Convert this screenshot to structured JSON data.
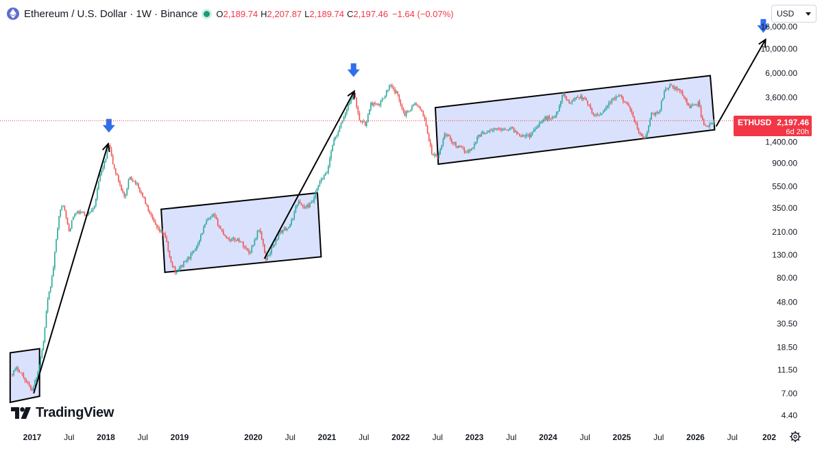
{
  "header": {
    "symbol_title": "Ethereum / U.S. Dollar · 1W · Binance",
    "open_label": "O",
    "open_value": "2,189.74",
    "high_label": "H",
    "high_value": "2,207.87",
    "low_label": "L",
    "low_value": "2,189.74",
    "close_label": "C",
    "close_value": "2,197.46",
    "change": "−1.64 (−0.07%)"
  },
  "currency_selector": {
    "value": "USD"
  },
  "price_tag": {
    "symbol": "ETHUSD",
    "price": "2,197.46",
    "countdown": "6d 20h"
  },
  "brand": {
    "name": "TradingView"
  },
  "colors": {
    "up": "#26a69a",
    "down": "#ef5350",
    "channel_fill": "#d3dcfb",
    "arrow_marker": "#2f6fea",
    "price_tag": "#f23645",
    "price_line": "#f23645",
    "trend_line": "#000000"
  },
  "chart_data": {
    "type": "candlestick",
    "scale": "log",
    "ylim": [
      3.4,
      20000
    ],
    "y_ticks": [
      "16,000.00",
      "10,000.00",
      "6,000.00",
      "3,600.00",
      "1,400.00",
      "900.00",
      "550.00",
      "350.00",
      "210.00",
      "130.00",
      "80.00",
      "48.00",
      "30.50",
      "18.50",
      "11.50",
      "7.00",
      "4.40"
    ],
    "y_tick_values": [
      16000,
      10000,
      6000,
      3600,
      1400,
      900,
      550,
      350,
      210,
      130,
      80,
      48,
      30.5,
      18.5,
      11.5,
      7,
      4.4
    ],
    "x_ticks": [
      "2017",
      "Jul",
      "2018",
      "Jul",
      "2019",
      "2020",
      "Jul",
      "2021",
      "Jul",
      "2022",
      "Jul",
      "2023",
      "Jul",
      "2024",
      "Jul",
      "2025",
      "Jul",
      "2026",
      "Jul",
      "202"
    ],
    "x_tick_dates": [
      2017.0,
      2017.5,
      2018.0,
      2018.5,
      2019.0,
      2020.0,
      2020.5,
      2021.0,
      2021.5,
      2022.0,
      2022.5,
      2023.0,
      2023.5,
      2024.0,
      2024.5,
      2025.0,
      2025.5,
      2026.0,
      2026.5,
      2027.0
    ],
    "last_price": 2197.46,
    "price_path": [
      [
        2016.71,
        10.5
      ],
      [
        2016.8,
        12.0
      ],
      [
        2016.88,
        10.0
      ],
      [
        2016.94,
        8.5
      ],
      [
        2017.0,
        7.5
      ],
      [
        2017.08,
        11.5
      ],
      [
        2017.15,
        20.0
      ],
      [
        2017.2,
        45.0
      ],
      [
        2017.28,
        90.0
      ],
      [
        2017.36,
        300.0
      ],
      [
        2017.42,
        380.0
      ],
      [
        2017.5,
        210.0
      ],
      [
        2017.56,
        300.0
      ],
      [
        2017.64,
        320.0
      ],
      [
        2017.75,
        300.0
      ],
      [
        2017.85,
        380.0
      ],
      [
        2017.92,
        700.0
      ],
      [
        2018.0,
        1000.0
      ],
      [
        2018.04,
        1350.0
      ],
      [
        2018.1,
        850.0
      ],
      [
        2018.18,
        600.0
      ],
      [
        2018.26,
        420.0
      ],
      [
        2018.32,
        680.0
      ],
      [
        2018.4,
        600.0
      ],
      [
        2018.5,
        450.0
      ],
      [
        2018.6,
        300.0
      ],
      [
        2018.7,
        220.0
      ],
      [
        2018.8,
        200.0
      ],
      [
        2018.88,
        110.0
      ],
      [
        2018.95,
        90.0
      ],
      [
        2019.06,
        110.0
      ],
      [
        2019.2,
        140.0
      ],
      [
        2019.36,
        260.0
      ],
      [
        2019.46,
        300.0
      ],
      [
        2019.56,
        220.0
      ],
      [
        2019.66,
        180.0
      ],
      [
        2019.8,
        180.0
      ],
      [
        2019.95,
        135.0
      ],
      [
        2020.08,
        230.0
      ],
      [
        2020.17,
        120.0
      ],
      [
        2020.22,
        135.0
      ],
      [
        2020.36,
        210.0
      ],
      [
        2020.5,
        240.0
      ],
      [
        2020.6,
        400.0
      ],
      [
        2020.7,
        350.0
      ],
      [
        2020.8,
        390.0
      ],
      [
        2020.9,
        600.0
      ],
      [
        2021.0,
        740.0
      ],
      [
        2021.08,
        1400.0
      ],
      [
        2021.16,
        1800.0
      ],
      [
        2021.26,
        2700.0
      ],
      [
        2021.36,
        4100.0
      ],
      [
        2021.44,
        2300.0
      ],
      [
        2021.52,
        2000.0
      ],
      [
        2021.6,
        3200.0
      ],
      [
        2021.7,
        3000.0
      ],
      [
        2021.85,
        4600.0
      ],
      [
        2021.96,
        3800.0
      ],
      [
        2022.05,
        2500.0
      ],
      [
        2022.2,
        3200.0
      ],
      [
        2022.32,
        2400.0
      ],
      [
        2022.42,
        1100.0
      ],
      [
        2022.5,
        1000.0
      ],
      [
        2022.6,
        1700.0
      ],
      [
        2022.75,
        1300.0
      ],
      [
        2022.88,
        1150.0
      ],
      [
        2022.96,
        1200.0
      ],
      [
        2023.05,
        1600.0
      ],
      [
        2023.2,
        1800.0
      ],
      [
        2023.35,
        1850.0
      ],
      [
        2023.5,
        1870.0
      ],
      [
        2023.6,
        1650.0
      ],
      [
        2023.75,
        1600.0
      ],
      [
        2023.85,
        2000.0
      ],
      [
        2023.95,
        2300.0
      ],
      [
        2024.1,
        2400.0
      ],
      [
        2024.2,
        3800.0
      ],
      [
        2024.3,
        3200.0
      ],
      [
        2024.4,
        3700.0
      ],
      [
        2024.52,
        3400.0
      ],
      [
        2024.6,
        2500.0
      ],
      [
        2024.7,
        2500.0
      ],
      [
        2024.85,
        3300.0
      ],
      [
        2024.95,
        3700.0
      ],
      [
        2025.05,
        3300.0
      ],
      [
        2025.15,
        2400.0
      ],
      [
        2025.25,
        1600.0
      ],
      [
        2025.32,
        1500.0
      ],
      [
        2025.4,
        2500.0
      ],
      [
        2025.5,
        2600.0
      ],
      [
        2025.58,
        4200.0
      ],
      [
        2025.65,
        4600.0
      ],
      [
        2025.72,
        4400.0
      ],
      [
        2025.82,
        3900.0
      ],
      [
        2025.9,
        3000.0
      ],
      [
        2025.96,
        3000.0
      ],
      [
        2026.04,
        3200.0
      ],
      [
        2026.1,
        2100.0
      ],
      [
        2026.18,
        1950.0
      ],
      [
        2026.26,
        2197.46
      ]
    ],
    "channels": [
      [
        [
          2016.7,
          16.5
        ],
        [
          2017.1,
          18.0
        ],
        [
          2017.1,
          6.6
        ],
        [
          2016.7,
          5.8
        ]
      ],
      [
        [
          2018.75,
          340.0
        ],
        [
          2020.87,
          480.0
        ],
        [
          2020.92,
          125.0
        ],
        [
          2018.8,
          90.0
        ]
      ],
      [
        [
          2022.47,
          2900.0
        ],
        [
          2026.2,
          5700.0
        ],
        [
          2026.26,
          1820.0
        ],
        [
          2022.51,
          880.0
        ]
      ]
    ],
    "trend_lines": [
      [
        [
          2017.02,
          7.0
        ],
        [
          2018.03,
          1350.0
        ]
      ],
      [
        [
          2020.15,
          120.0
        ],
        [
          2021.37,
          4100.0
        ]
      ],
      [
        [
          2026.28,
          1950.0
        ],
        [
          2026.95,
          12200.0
        ]
      ]
    ],
    "arrow_markers": [
      [
        2018.04,
        1950.0
      ],
      [
        2021.36,
        6300.0
      ],
      [
        2026.92,
        16000.0
      ]
    ]
  }
}
